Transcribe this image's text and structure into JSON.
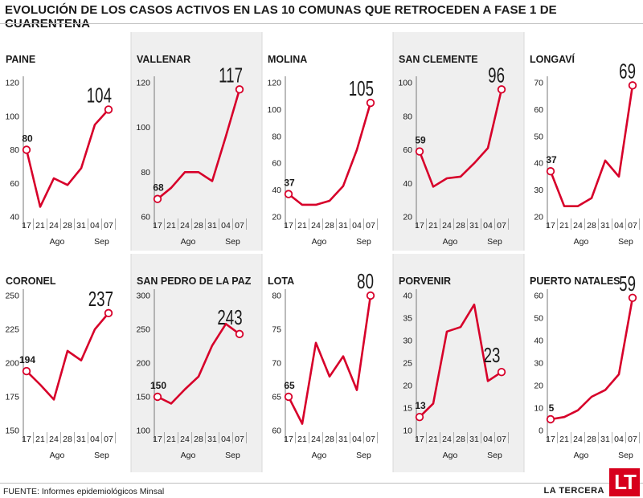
{
  "header": {
    "title": "EVOLUCIÓN DE LOS CASOS ACTIVOS EN LAS 10 COMUNAS QUE RETROCEDEN A FASE 1 DE CUARENTENA"
  },
  "footer": {
    "source": "FUENTE: Informes epidemiológicos Minsal",
    "brand": "LA TERCERA",
    "logo_text": "LT"
  },
  "colors": {
    "line": "#d7002a",
    "marker_fill": "#ffffff",
    "shade": "#efefef",
    "text": "#1a1a1a"
  },
  "chart_data": [
    {
      "type": "line",
      "title": "PAINE",
      "x": [
        "17",
        "21",
        "24",
        "28",
        "31",
        "04",
        "07"
      ],
      "month_labels": [
        "Ago",
        "Sep"
      ],
      "values": [
        80,
        46,
        63,
        59,
        69,
        95,
        104
      ],
      "ylim": [
        40,
        120
      ],
      "yticks": [
        "40",
        "60",
        "80",
        "100",
        "120"
      ],
      "first_label": "80",
      "last_label": "104"
    },
    {
      "type": "line",
      "title": "VALLENAR",
      "x": [
        "17",
        "21",
        "24",
        "28",
        "31",
        "04",
        "07"
      ],
      "month_labels": [
        "Ago",
        "Sep"
      ],
      "values": [
        68,
        73,
        80,
        80,
        76,
        96,
        117
      ],
      "ylim": [
        60,
        120
      ],
      "yticks": [
        "60",
        "80",
        "100",
        "120"
      ],
      "first_label": "68",
      "last_label": "117"
    },
    {
      "type": "line",
      "title": "MOLINA",
      "x": [
        "17",
        "21",
        "24",
        "28",
        "31",
        "04",
        "07"
      ],
      "month_labels": [
        "Ago",
        "Sep"
      ],
      "values": [
        37,
        29,
        29,
        32,
        43,
        70,
        105
      ],
      "ylim": [
        20,
        120
      ],
      "yticks": [
        "20",
        "40",
        "60",
        "80",
        "100",
        "120"
      ],
      "first_label": "37",
      "last_label": "105"
    },
    {
      "type": "line",
      "title": "SAN CLEMENTE",
      "x": [
        "17",
        "21",
        "24",
        "28",
        "31",
        "04",
        "07"
      ],
      "month_labels": [
        "Ago",
        "Sep"
      ],
      "values": [
        59,
        38,
        43,
        44,
        52,
        61,
        96
      ],
      "ylim": [
        20,
        100
      ],
      "yticks": [
        "20",
        "40",
        "60",
        "80",
        "100"
      ],
      "first_label": "59",
      "last_label": "96"
    },
    {
      "type": "line",
      "title": "LONGAVÍ",
      "x": [
        "17",
        "21",
        "24",
        "28",
        "31",
        "04",
        "07"
      ],
      "month_labels": [
        "Ago",
        "Sep"
      ],
      "values": [
        37,
        24,
        24,
        27,
        41,
        35,
        69
      ],
      "ylim": [
        20,
        70
      ],
      "yticks": [
        "20",
        "30",
        "40",
        "50",
        "60",
        "70"
      ],
      "first_label": "37",
      "last_label": "69"
    },
    {
      "type": "line",
      "title": "CORONEL",
      "x": [
        "17",
        "21",
        "24",
        "28",
        "31",
        "04",
        "07"
      ],
      "month_labels": [
        "Ago",
        "Sep"
      ],
      "values": [
        194,
        184,
        173,
        209,
        202,
        225,
        237
      ],
      "ylim": [
        150,
        250
      ],
      "yticks": [
        "150",
        "175",
        "200",
        "225",
        "250"
      ],
      "first_label": "194",
      "last_label": "237"
    },
    {
      "type": "line",
      "title": "SAN PEDRO DE LA PAZ",
      "x": [
        "17",
        "21",
        "24",
        "28",
        "31",
        "04",
        "07"
      ],
      "month_labels": [
        "Ago",
        "Sep"
      ],
      "values": [
        150,
        140,
        161,
        180,
        226,
        258,
        243
      ],
      "ylim": [
        100,
        300
      ],
      "yticks": [
        "100",
        "150",
        "200",
        "250",
        "300"
      ],
      "first_label": "150",
      "last_label": "243"
    },
    {
      "type": "line",
      "title": "LOTA",
      "x": [
        "17",
        "21",
        "24",
        "28",
        "31",
        "04",
        "07"
      ],
      "month_labels": [
        "Ago",
        "Sep"
      ],
      "values": [
        65,
        61,
        73,
        68,
        71,
        66,
        80
      ],
      "ylim": [
        60,
        80
      ],
      "yticks": [
        "60",
        "65",
        "70",
        "75",
        "80"
      ],
      "first_label": "65",
      "last_label": "80"
    },
    {
      "type": "line",
      "title": "PORVENIR",
      "x": [
        "17",
        "21",
        "24",
        "28",
        "31",
        "04",
        "07"
      ],
      "month_labels": [
        "Ago",
        "Sep"
      ],
      "values": [
        13,
        16,
        32,
        33,
        38,
        21,
        23
      ],
      "ylim": [
        10,
        40
      ],
      "yticks": [
        "10",
        "15",
        "20",
        "25",
        "30",
        "35",
        "40"
      ],
      "first_label": "13",
      "last_label": "23"
    },
    {
      "type": "line",
      "title": "PUERTO NATALES",
      "x": [
        "17",
        "21",
        "24",
        "28",
        "31",
        "04",
        "07"
      ],
      "month_labels": [
        "Ago",
        "Sep"
      ],
      "values": [
        5,
        6,
        9,
        15,
        18,
        25,
        59
      ],
      "ylim": [
        0,
        60
      ],
      "yticks": [
        "0",
        "10",
        "20",
        "30",
        "40",
        "50",
        "60"
      ],
      "first_label": "5",
      "last_label": "59"
    }
  ]
}
